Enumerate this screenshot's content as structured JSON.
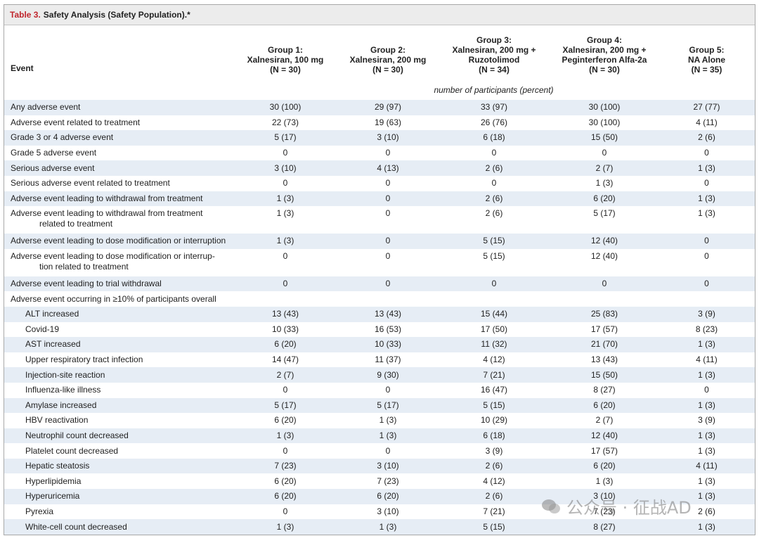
{
  "title": {
    "label": "Table 3.",
    "text": "Safety Analysis (Safety Population).*"
  },
  "columns": {
    "event": "Event",
    "groups": [
      {
        "name": "Group 1:",
        "regimen": [
          "Xalnesiran, 100 mg"
        ],
        "n": "(N = 30)"
      },
      {
        "name": "Group 2:",
        "regimen": [
          "Xalnesiran, 200 mg"
        ],
        "n": "(N = 30)"
      },
      {
        "name": "Group 3:",
        "regimen": [
          "Xalnesiran, 200 mg +",
          "Ruzotolimod"
        ],
        "n": "(N = 34)"
      },
      {
        "name": "Group 4:",
        "regimen": [
          "Xalnesiran, 200 mg +",
          "Peginterferon Alfa-2a"
        ],
        "n": "(N = 30)"
      },
      {
        "name": "Group 5:",
        "regimen": [
          "NA Alone"
        ],
        "n": "(N = 35)"
      }
    ]
  },
  "unit": "number of participants (percent)",
  "rows": [
    {
      "event": "Any adverse event",
      "values": [
        "30 (100)",
        "29 (97)",
        "33 (97)",
        "30 (100)",
        "27 (77)"
      ]
    },
    {
      "event": "Adverse event related to treatment",
      "values": [
        "22 (73)",
        "19 (63)",
        "26 (76)",
        "30 (100)",
        "4 (11)"
      ]
    },
    {
      "event": "Grade 3 or 4 adverse event",
      "values": [
        "5 (17)",
        "3 (10)",
        "6 (18)",
        "15 (50)",
        "2 (6)"
      ]
    },
    {
      "event": "Grade 5 adverse event",
      "values": [
        "0",
        "0",
        "0",
        "0",
        "0"
      ]
    },
    {
      "event": "Serious adverse event",
      "values": [
        "3 (10)",
        "4 (13)",
        "2 (6)",
        "2 (7)",
        "1 (3)"
      ]
    },
    {
      "event": "Serious adverse event related to treatment",
      "values": [
        "0",
        "0",
        "0",
        "1 (3)",
        "0"
      ]
    },
    {
      "event": "Adverse event leading to withdrawal from treatment",
      "values": [
        "1 (3)",
        "0",
        "2 (6)",
        "6 (20)",
        "1 (3)"
      ]
    },
    {
      "event": [
        "Adverse event leading to withdrawal from treatment",
        "related to treatment"
      ],
      "values": [
        "1 (3)",
        "0",
        "2 (6)",
        "5 (17)",
        "1 (3)"
      ]
    },
    {
      "event": "Adverse event leading to dose modification or interruption",
      "values": [
        "1 (3)",
        "0",
        "5 (15)",
        "12 (40)",
        "0"
      ]
    },
    {
      "event": [
        "Adverse event leading to dose modification or interrup-",
        "tion related to treatment"
      ],
      "values": [
        "0",
        "0",
        "5 (15)",
        "12 (40)",
        "0"
      ]
    },
    {
      "event": "Adverse event leading to trial withdrawal",
      "values": [
        "0",
        "0",
        "0",
        "0",
        "0"
      ]
    }
  ],
  "subgroup": {
    "label": "Adverse event occurring in ≥10% of participants overall",
    "rows": [
      {
        "event": "ALT increased",
        "values": [
          "13 (43)",
          "13 (43)",
          "15 (44)",
          "25 (83)",
          "3 (9)"
        ]
      },
      {
        "event": "Covid-19",
        "values": [
          "10 (33)",
          "16 (53)",
          "17 (50)",
          "17 (57)",
          "8 (23)"
        ]
      },
      {
        "event": "AST increased",
        "values": [
          "6 (20)",
          "10 (33)",
          "11 (32)",
          "21 (70)",
          "1 (3)"
        ]
      },
      {
        "event": "Upper respiratory tract infection",
        "values": [
          "14 (47)",
          "11 (37)",
          "4 (12)",
          "13 (43)",
          "4 (11)"
        ]
      },
      {
        "event": "Injection-site reaction",
        "values": [
          "2 (7)",
          "9 (30)",
          "7 (21)",
          "15 (50)",
          "1 (3)"
        ]
      },
      {
        "event": "Influenza-like illness",
        "values": [
          "0",
          "0",
          "16 (47)",
          "8 (27)",
          "0"
        ]
      },
      {
        "event": "Amylase increased",
        "values": [
          "5 (17)",
          "5 (17)",
          "5 (15)",
          "6 (20)",
          "1 (3)"
        ]
      },
      {
        "event": "HBV reactivation",
        "values": [
          "6 (20)",
          "1 (3)",
          "10 (29)",
          "2 (7)",
          "3 (9)"
        ]
      },
      {
        "event": "Neutrophil count decreased",
        "values": [
          "1 (3)",
          "1 (3)",
          "6 (18)",
          "12 (40)",
          "1 (3)"
        ]
      },
      {
        "event": "Platelet count decreased",
        "values": [
          "0",
          "0",
          "3 (9)",
          "17 (57)",
          "1 (3)"
        ]
      },
      {
        "event": "Hepatic steatosis",
        "values": [
          "7 (23)",
          "3 (10)",
          "2 (6)",
          "6 (20)",
          "4 (11)"
        ]
      },
      {
        "event": "Hyperlipidemia",
        "values": [
          "6 (20)",
          "7 (23)",
          "4 (12)",
          "1 (3)",
          "1 (3)"
        ]
      },
      {
        "event": "Hyperuricemia",
        "values": [
          "6 (20)",
          "6 (20)",
          "2 (6)",
          "3 (10)",
          "1 (3)"
        ]
      },
      {
        "event": "Pyrexia",
        "values": [
          "0",
          "3 (10)",
          "7 (21)",
          "7 (23)",
          "2 (6)"
        ]
      },
      {
        "event": "White-cell count decreased",
        "values": [
          "1 (3)",
          "1 (3)",
          "5 (15)",
          "8 (27)",
          "1 (3)"
        ]
      }
    ]
  },
  "watermark": "公众号 · 征战AD"
}
